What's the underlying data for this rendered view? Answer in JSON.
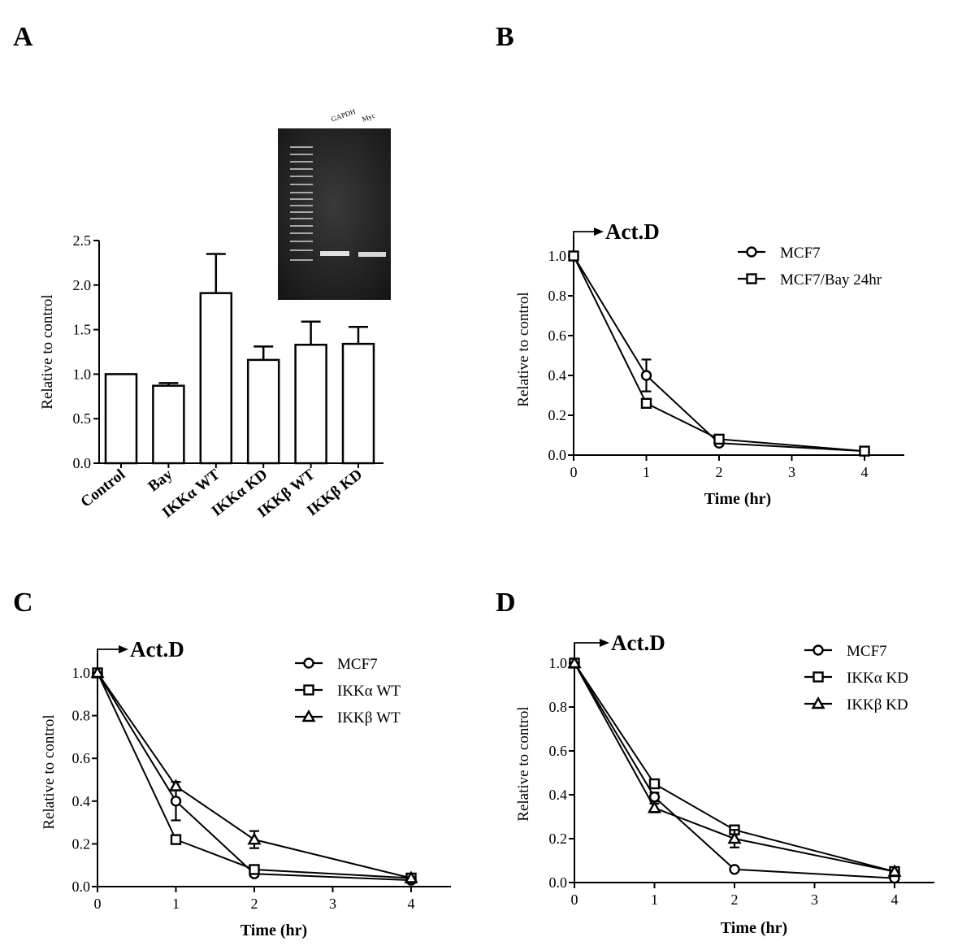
{
  "panels": {
    "A": {
      "label": "A"
    },
    "B": {
      "label": "B"
    },
    "C": {
      "label": "C"
    },
    "D": {
      "label": "D"
    }
  },
  "gel": {
    "lanes": [
      "GAPDH",
      "Myc"
    ]
  },
  "chart_data": [
    {
      "id": "A",
      "type": "bar",
      "title": "",
      "xlabel": "",
      "ylabel": "Relative  to control",
      "ylim": [
        0,
        2.5
      ],
      "yticks": [
        "0.0",
        "0.5",
        "1.0",
        "1.5",
        "2.0",
        "2.5"
      ],
      "categories": [
        "Control",
        "Bay",
        "IKKα WT",
        "IKKα KD",
        "IKKβ WT",
        "IKKβ KD"
      ],
      "values": [
        1.0,
        0.87,
        1.91,
        1.16,
        1.33,
        1.34
      ],
      "errors": [
        0,
        0.03,
        0.44,
        0.15,
        0.26,
        0.19
      ]
    },
    {
      "id": "B",
      "type": "line",
      "annotation": "Act.D",
      "xlabel": "Time (hr)",
      "ylabel": "Relative  to control",
      "xlim": [
        0,
        4.5
      ],
      "ylim": [
        0,
        1.0
      ],
      "xticks": [
        "0",
        "1",
        "2",
        "3",
        "4"
      ],
      "yticks": [
        "0.0",
        "0.2",
        "0.4",
        "0.6",
        "0.8",
        "1.0"
      ],
      "legend_position": "top-right",
      "series": [
        {
          "name": "MCF7",
          "marker": "circle",
          "x": [
            0,
            1,
            2,
            4
          ],
          "values": [
            1.0,
            0.4,
            0.06,
            0.02
          ],
          "errors": [
            0,
            0.08,
            0.01,
            0
          ]
        },
        {
          "name": "MCF7/Bay 24hr",
          "marker": "square",
          "x": [
            0,
            1,
            2,
            4
          ],
          "values": [
            1.0,
            0.26,
            0.08,
            0.02
          ],
          "errors": [
            0,
            0.02,
            0.01,
            0
          ]
        }
      ]
    },
    {
      "id": "C",
      "type": "line",
      "annotation": "Act.D",
      "xlabel": "Time (hr)",
      "ylabel": "Relative  to control",
      "xlim": [
        0,
        4.5
      ],
      "ylim": [
        0,
        1.0
      ],
      "xticks": [
        "0",
        "1",
        "2",
        "3",
        "4"
      ],
      "yticks": [
        "0.0",
        "0.2",
        "0.4",
        "0.6",
        "0.8",
        "1.0"
      ],
      "legend_position": "top-right",
      "series": [
        {
          "name": "MCF7",
          "marker": "circle",
          "x": [
            0,
            1,
            2,
            4
          ],
          "values": [
            1.0,
            0.4,
            0.06,
            0.03
          ],
          "errors": [
            0,
            0.09,
            0.01,
            0
          ]
        },
        {
          "name": "IKKα WT",
          "marker": "square",
          "x": [
            0,
            1,
            2,
            4
          ],
          "values": [
            1.0,
            0.22,
            0.08,
            0.04
          ],
          "errors": [
            0,
            0.01,
            0.01,
            0
          ]
        },
        {
          "name": "IKKβ WT",
          "marker": "triangle",
          "x": [
            0,
            1,
            2,
            4
          ],
          "values": [
            1.0,
            0.47,
            0.22,
            0.04
          ],
          "errors": [
            0,
            0.02,
            0.04,
            0
          ]
        }
      ]
    },
    {
      "id": "D",
      "type": "line",
      "annotation": "Act.D",
      "xlabel": "Time (hr)",
      "ylabel": "Relative  to control",
      "xlim": [
        0,
        4.5
      ],
      "ylim": [
        0,
        1.0
      ],
      "xticks": [
        "0",
        "1",
        "2",
        "3",
        "4"
      ],
      "yticks": [
        "0.0",
        "0.2",
        "0.4",
        "0.6",
        "0.8",
        "1.0"
      ],
      "legend_position": "top-right",
      "series": [
        {
          "name": "MCF7",
          "marker": "circle",
          "x": [
            0,
            1,
            2,
            4
          ],
          "values": [
            1.0,
            0.39,
            0.06,
            0.02
          ],
          "errors": [
            0,
            0.02,
            0,
            0
          ]
        },
        {
          "name": "IKKα KD",
          "marker": "square",
          "x": [
            0,
            1,
            2,
            4
          ],
          "values": [
            1.0,
            0.45,
            0.24,
            0.05
          ],
          "errors": [
            0,
            0.02,
            0.01,
            0
          ]
        },
        {
          "name": "IKKβ KD",
          "marker": "triangle",
          "x": [
            0,
            1,
            2,
            4
          ],
          "values": [
            1.0,
            0.34,
            0.2,
            0.05
          ],
          "errors": [
            0,
            0.02,
            0.04,
            0
          ]
        }
      ]
    }
  ]
}
